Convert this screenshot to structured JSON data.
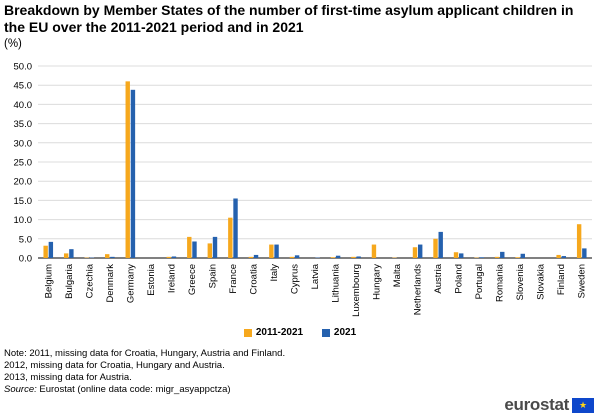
{
  "title": "Breakdown by Member States of the number of first-time asylum applicant children in the EU over the 2011-2021 period and in 2021",
  "unit": "(%)",
  "colors": {
    "series_1": "#f6a81d",
    "series_2": "#2561ae",
    "grid": "#dcdcdc"
  },
  "chart_data": {
    "type": "bar",
    "categories": [
      "Belgium",
      "Bulgaria",
      "Czechia",
      "Denmark",
      "Germany",
      "Estonia",
      "Ireland",
      "Greece",
      "Spain",
      "France",
      "Croatia",
      "Italy",
      "Cyprus",
      "Latvia",
      "Lithuania",
      "Luxembourg",
      "Hungary",
      "Malta",
      "Netherlands",
      "Austria",
      "Poland",
      "Portugal",
      "Romania",
      "Slovenia",
      "Slovakia",
      "Finland",
      "Sweden"
    ],
    "series": [
      {
        "name": "2011-2021",
        "values": [
          3.2,
          1.2,
          0.1,
          1.0,
          46.0,
          0.0,
          0.3,
          5.5,
          3.8,
          10.5,
          0.3,
          3.5,
          0.3,
          0.0,
          0.2,
          0.3,
          3.5,
          0.1,
          2.8,
          5.0,
          1.5,
          0.1,
          0.3,
          0.2,
          0.0,
          0.8,
          8.8
        ]
      },
      {
        "name": "2021",
        "values": [
          4.2,
          2.3,
          0.1,
          0.3,
          43.8,
          0.0,
          0.4,
          4.3,
          5.5,
          15.5,
          0.8,
          3.5,
          0.7,
          0.1,
          0.6,
          0.4,
          0.0,
          0.0,
          3.5,
          6.8,
          1.2,
          0.2,
          1.6,
          1.1,
          0.0,
          0.5,
          2.5
        ]
      }
    ],
    "y_ticks": [
      "0.0",
      "5.0",
      "10.0",
      "15.0",
      "20.0",
      "25.0",
      "30.0",
      "35.0",
      "40.0",
      "45.0",
      "50.0"
    ],
    "ylim": [
      0,
      50
    ],
    "grid": true,
    "legend_position": "bottom"
  },
  "notes": [
    "Note: 2011, missing data for Croatia, Hungary, Austria and Finland.",
    "2012, missing data for Croatia, Hungary and Austria.",
    "2013, missing data for Austria."
  ],
  "source": {
    "label": "Source:",
    "text": " Eurostat (online data code: migr_asyappctza)"
  },
  "logo": "eurostat"
}
